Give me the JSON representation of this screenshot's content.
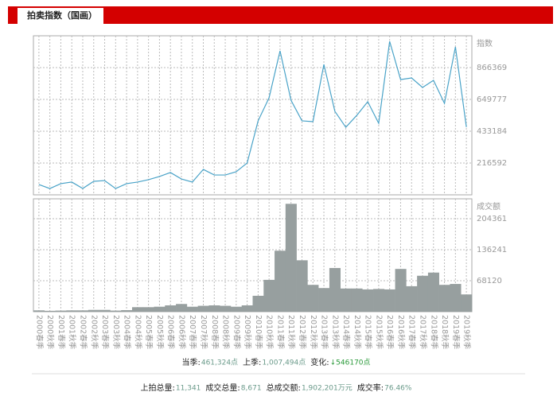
{
  "header": {
    "title": "拍卖指数（国画）"
  },
  "chart_data": [
    {
      "type": "line",
      "y_label": "指数",
      "color": "#4aa3c8",
      "values": [
        70000,
        43000,
        76000,
        87000,
        43000,
        92000,
        97000,
        43000,
        76000,
        87000,
        103000,
        125000,
        152000,
        108000,
        87000,
        173000,
        135000,
        135000,
        157000,
        217000,
        504000,
        661000,
        980000,
        644000,
        504000,
        498000,
        888000,
        569000,
        460000,
        541000,
        634000,
        487000,
        1045000,
        785000,
        796000,
        731000,
        780000,
        623000,
        1007494,
        461324
      ],
      "ylim": [
        0,
        1082960
      ],
      "yticks": [
        216592,
        433184,
        649777,
        866369
      ],
      "grid": true
    },
    {
      "type": "bar",
      "y_label": "成交额",
      "color": "#979f9f",
      "categories": [
        "2000春季",
        "2000秋季",
        "2001春季",
        "2001秋季",
        "2002春季",
        "2002秋季",
        "2003春季",
        "2003秋季",
        "2004春季",
        "2004秋季",
        "2005春季",
        "2005秋季",
        "2006春季",
        "2006秋季",
        "2007春季",
        "2007秋季",
        "2008春季",
        "2008秋季",
        "2009春季",
        "2009秋季",
        "2010春季",
        "2010秋季",
        "2011春季",
        "2011秋季",
        "2012春季",
        "2012秋季",
        "2013春季",
        "2013秋季",
        "2014春季",
        "2014秋季",
        "2015春季",
        "2015秋季",
        "2016春季",
        "2016秋季",
        "2017春季",
        "2017秋季",
        "2018春季",
        "2018秋季",
        "2019春季",
        "2019秋季"
      ],
      "values": [
        3000,
        2000,
        2500,
        3000,
        3000,
        4000,
        4000,
        2500,
        3500,
        10000,
        10000,
        11000,
        14000,
        17000,
        11000,
        13000,
        14000,
        13000,
        11000,
        14000,
        35000,
        70000,
        134000,
        237000,
        113000,
        59000,
        52000,
        96000,
        51000,
        51000,
        49000,
        50000,
        49000,
        94000,
        56000,
        79000,
        86000,
        59000,
        61000,
        38000
      ],
      "ylim": [
        0,
        248000
      ],
      "yticks": [
        68120,
        136241,
        204361
      ],
      "grid": true
    }
  ],
  "season": {
    "current_label": "当季:",
    "current_value": "461,324点",
    "previous_label": "上季:",
    "previous_value": "1,007,494点",
    "change_label": "变化:",
    "change_value": "↓546170点"
  },
  "totals": {
    "lots_label": "上拍总量:",
    "lots_value": "11,341",
    "sold_label": "成交总量:",
    "sold_value": "8,671",
    "turnover_label": "总成交额:",
    "turnover_value": "1,902,201万元",
    "rate_label": "成交率:",
    "rate_value": "76.46%"
  }
}
